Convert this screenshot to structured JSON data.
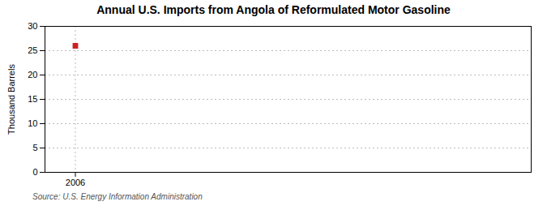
{
  "chart_data": {
    "type": "scatter",
    "title": "Annual U.S. Imports from Angola of Reformulated Motor Gasoline",
    "ylabel": "Thousand Barrels",
    "source": "Source: U.S. Energy Information Administration",
    "x": [
      2006
    ],
    "values": [
      26
    ],
    "color": "#cc2222",
    "marker": "square",
    "xlim": [
      2005.3,
      2016.5
    ],
    "xticks": [
      2006
    ],
    "ylim": [
      0,
      30
    ],
    "yticks": [
      0,
      5,
      10,
      15,
      20,
      25,
      30
    ],
    "grid": true
  }
}
